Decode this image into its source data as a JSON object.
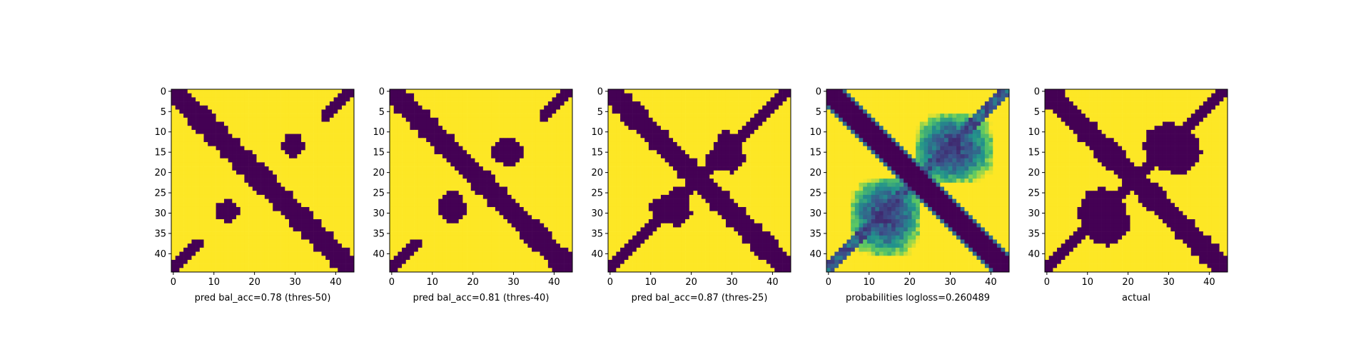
{
  "colors": {
    "low": "#440154",
    "mid_dark": "#31688e",
    "mid": "#21918c",
    "mid_light": "#5ec962",
    "high": "#fde725"
  },
  "chart_data": [
    {
      "type": "heatmap",
      "title": "",
      "xlabel": "pred bal_acc=0.78 (thres-50)",
      "ylabel": "",
      "grid_size": 45,
      "xticks": [
        0,
        10,
        20,
        30,
        40
      ],
      "yticks": [
        0,
        5,
        10,
        15,
        20,
        25,
        30,
        35,
        40
      ],
      "xlim": [
        0,
        44
      ],
      "ylim": [
        44,
        0
      ],
      "binary": true,
      "diagonal": {
        "direction": "main",
        "band_offsets": [
          -3,
          0
        ]
      },
      "blobs": [
        {
          "rows": [
            11,
            16
          ],
          "cols": [
            27,
            32
          ]
        },
        {
          "rows": [
            28,
            31
          ],
          "cols": [
            12,
            16
          ]
        }
      ],
      "anti_diagonal_edges": [
        {
          "rows": [
            0,
            6
          ],
          "cols": [
            37,
            44
          ]
        },
        {
          "rows": [
            37,
            44
          ],
          "cols": [
            0,
            7
          ]
        }
      ]
    },
    {
      "type": "heatmap",
      "title": "",
      "xlabel": "pred bal_acc=0.81 (thres-40)",
      "ylabel": "",
      "grid_size": 45,
      "xticks": [
        0,
        10,
        20,
        30,
        40
      ],
      "yticks": [
        0,
        5,
        10,
        15,
        20,
        25,
        30,
        35,
        40
      ],
      "xlim": [
        0,
        44
      ],
      "ylim": [
        44,
        0
      ],
      "binary": true,
      "diagonal": {
        "direction": "main",
        "band_offsets": [
          -3,
          0
        ]
      },
      "blobs": [
        {
          "rows": [
            12,
            17
          ],
          "cols": [
            25,
            32
          ]
        },
        {
          "rows": [
            25,
            32
          ],
          "cols": [
            12,
            18
          ]
        }
      ],
      "anti_diagonal_edges": [
        {
          "rows": [
            0,
            6
          ],
          "cols": [
            37,
            44
          ]
        },
        {
          "rows": [
            37,
            44
          ],
          "cols": [
            0,
            7
          ]
        }
      ]
    },
    {
      "type": "heatmap",
      "title": "",
      "xlabel": "pred bal_acc=0.87 (thres-25)",
      "ylabel": "",
      "grid_size": 45,
      "xticks": [
        0,
        10,
        20,
        30,
        40
      ],
      "yticks": [
        0,
        5,
        10,
        15,
        20,
        25,
        30,
        35,
        40
      ],
      "xlim": [
        0,
        44
      ],
      "ylim": [
        44,
        0
      ],
      "binary": true,
      "diagonal": {
        "direction": "main",
        "band_offsets": [
          -3,
          0
        ]
      },
      "blobs": [
        {
          "rows": [
            14,
            19
          ],
          "cols": [
            24,
            33
          ]
        },
        {
          "rows": [
            26,
            32
          ],
          "cols": [
            10,
            20
          ]
        }
      ],
      "anti_diagonal_edges": [
        {
          "rows": [
            0,
            44
          ],
          "cols": [
            0,
            44
          ]
        }
      ]
    },
    {
      "type": "heatmap",
      "title": "",
      "xlabel": "probabilities logloss=0.260489",
      "ylabel": "",
      "grid_size": 45,
      "xticks": [
        0,
        10,
        20,
        30,
        40
      ],
      "yticks": [
        0,
        5,
        10,
        15,
        20,
        25,
        30,
        35,
        40
      ],
      "xlim": [
        0,
        44
      ],
      "ylim": [
        44,
        0
      ],
      "binary": false,
      "diagonal": {
        "direction": "main",
        "band_offsets": [
          -3,
          0
        ]
      },
      "blobs": [
        {
          "rows": [
            8,
            22
          ],
          "cols": [
            22,
            38
          ]
        },
        {
          "rows": [
            22,
            40
          ],
          "cols": [
            6,
            22
          ]
        }
      ],
      "anti_diagonal_edges": [
        {
          "rows": [
            0,
            44
          ],
          "cols": [
            0,
            44
          ]
        }
      ]
    },
    {
      "type": "heatmap",
      "title": "",
      "xlabel": "actual",
      "ylabel": "",
      "grid_size": 45,
      "xticks": [
        0,
        10,
        20,
        30,
        40
      ],
      "yticks": [
        0,
        5,
        10,
        15,
        20,
        25,
        30,
        35,
        40
      ],
      "xlim": [
        0,
        44
      ],
      "ylim": [
        44,
        0
      ],
      "binary": true,
      "diagonal": {
        "direction": "main",
        "band_offsets": [
          -3,
          0
        ]
      },
      "blobs": [
        {
          "rows": [
            10,
            20
          ],
          "cols": [
            26,
            38
          ]
        },
        {
          "rows": [
            24,
            34
          ],
          "cols": [
            8,
            18
          ]
        }
      ],
      "anti_diagonal_edges": [
        {
          "rows": [
            0,
            44
          ],
          "cols": [
            0,
            44
          ]
        }
      ]
    }
  ]
}
